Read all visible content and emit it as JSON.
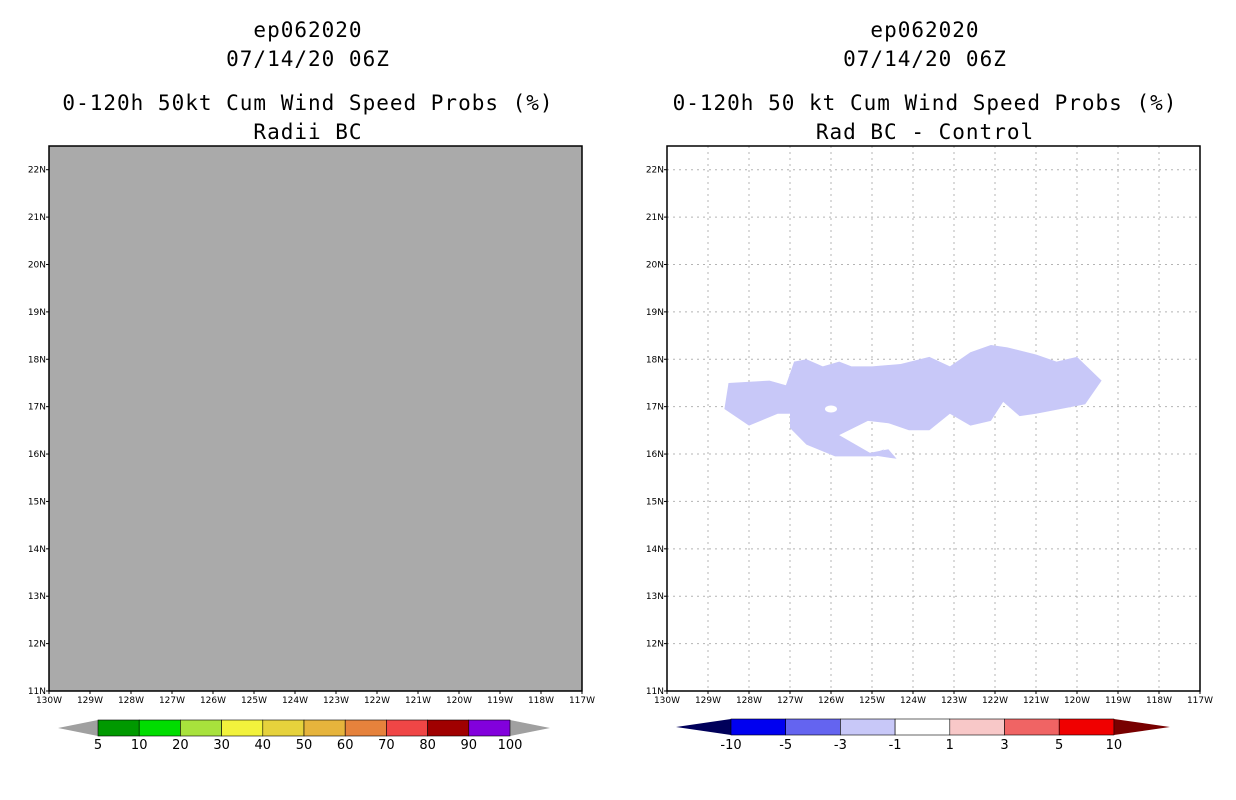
{
  "left": {
    "line1": "ep062020",
    "line2": "07/14/20 06Z",
    "line3": "0-120h 50kt Cum Wind Speed Probs (%)",
    "line4": "Radii BC"
  },
  "right": {
    "line1": "ep062020",
    "line2": "07/14/20 06Z",
    "line3": "0-120h 50 kt Cum Wind Speed Probs (%)",
    "line4": "Rad BC - Control"
  },
  "colors": {
    "map_fill": "#aaaaaa",
    "diff_blob": "#c8c8f8",
    "grid": "#b4b4b4"
  },
  "chart_data": [
    {
      "type": "heatmap",
      "title": "0-120h 50kt Cum Wind Speed Probs (%) - Radii BC",
      "x_ticks": [
        "130W",
        "129W",
        "128W",
        "127W",
        "126W",
        "125W",
        "124W",
        "123W",
        "122W",
        "121W",
        "120W",
        "119W",
        "118W",
        "117W"
      ],
      "y_ticks": [
        "11N",
        "12N",
        "13N",
        "14N",
        "15N",
        "16N",
        "17N",
        "18N",
        "19N",
        "20N",
        "21N",
        "22N"
      ],
      "xlim": [
        -130,
        -117
      ],
      "ylim": [
        11,
        22.5
      ],
      "field": "uniform 0% (no shaded contours)",
      "colorbar": {
        "labels": [
          "5",
          "10",
          "20",
          "30",
          "40",
          "50",
          "60",
          "70",
          "80",
          "90",
          "100"
        ],
        "colors": [
          "#009900",
          "#00dd00",
          "#a8e23c",
          "#f2f23c",
          "#e6d23c",
          "#e6b43c",
          "#e6823c",
          "#f04646",
          "#a00000",
          "#8200dc"
        ],
        "end_color": "#a0a0a0"
      }
    },
    {
      "type": "heatmap",
      "title": "0-120h 50 kt Cum Wind Speed Probs (%) - Rad BC - Control",
      "x_ticks": [
        "130W",
        "129W",
        "128W",
        "127W",
        "126W",
        "125W",
        "124W",
        "123W",
        "122W",
        "121W",
        "120W",
        "119W",
        "118W",
        "117W"
      ],
      "y_ticks": [
        "11N",
        "12N",
        "13N",
        "14N",
        "15N",
        "16N",
        "17N",
        "18N",
        "19N",
        "20N",
        "21N",
        "22N"
      ],
      "xlim": [
        -130,
        -117
      ],
      "ylim": [
        11,
        22.5
      ],
      "region": {
        "value_range": [
          -3,
          -1
        ],
        "outline_lonlat": [
          [
            -128.5,
            17.5
          ],
          [
            -127.5,
            17.55
          ],
          [
            -127.1,
            17.45
          ],
          [
            -126.9,
            17.95
          ],
          [
            -126.6,
            18.0
          ],
          [
            -126.2,
            17.85
          ],
          [
            -125.8,
            17.95
          ],
          [
            -125.5,
            17.85
          ],
          [
            -125.0,
            17.85
          ],
          [
            -124.3,
            17.9
          ],
          [
            -123.6,
            18.05
          ],
          [
            -123.1,
            17.85
          ],
          [
            -122.6,
            18.15
          ],
          [
            -122.1,
            18.3
          ],
          [
            -121.7,
            18.25
          ],
          [
            -121.0,
            18.1
          ],
          [
            -120.5,
            17.95
          ],
          [
            -120.0,
            18.05
          ],
          [
            -119.4,
            17.55
          ],
          [
            -119.8,
            17.05
          ],
          [
            -121.0,
            16.85
          ],
          [
            -121.4,
            16.8
          ],
          [
            -121.8,
            17.1
          ],
          [
            -122.1,
            16.7
          ],
          [
            -122.6,
            16.6
          ],
          [
            -123.1,
            16.85
          ],
          [
            -123.6,
            16.5
          ],
          [
            -124.1,
            16.5
          ],
          [
            -124.6,
            16.65
          ],
          [
            -125.1,
            16.7
          ],
          [
            -125.8,
            16.4
          ],
          [
            -125.0,
            16.0
          ],
          [
            -124.7,
            16.1
          ],
          [
            -124.9,
            15.95
          ],
          [
            -125.9,
            15.95
          ],
          [
            -126.6,
            16.2
          ],
          [
            -127.0,
            16.55
          ],
          [
            -127.0,
            16.85
          ],
          [
            -127.3,
            16.85
          ],
          [
            -128.0,
            16.6
          ],
          [
            -128.6,
            16.95
          ]
        ],
        "hole_lonlat": [
          -126.0,
          16.95
        ]
      },
      "colorbar": {
        "labels": [
          "-10",
          "-5",
          "-3",
          "-1",
          "1",
          "3",
          "5",
          "10"
        ],
        "colors": [
          "#000096",
          "#0000f0",
          "#6464f0",
          "#c8c8f8",
          "#ffffff",
          "#f8c8c8",
          "#f06464",
          "#f00000"
        ],
        "low_end_color": "#00005a",
        "high_end_color": "#780000"
      }
    }
  ]
}
